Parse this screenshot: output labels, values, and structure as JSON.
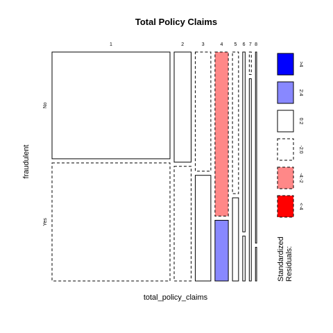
{
  "chart_data": {
    "type": "mosaic",
    "title": "Total Policy Claims",
    "xlabel": "total_policy_claims",
    "ylabel": "fraudulent",
    "categories": [
      "1",
      "2",
      "3",
      "4",
      "5",
      "6",
      "7",
      "8"
    ],
    "column_widths": [
      0.584,
      0.084,
      0.077,
      0.066,
      0.03,
      0.012,
      0.01,
      0.006
    ],
    "rows": [
      "No",
      "Yes"
    ],
    "no_share": [
      0.475,
      0.49,
      0.53,
      0.73,
      0.63,
      0.8,
      0.1,
      0.85
    ],
    "residual_class": [
      [
        "0:2",
        "0:2",
        "-2:0",
        "-4:-2",
        "-2:0",
        "0:2",
        "-2:0",
        "0:2"
      ],
      [
        "-2:0",
        "-2:0",
        "0:2",
        "2:4",
        "0:2",
        "0:2",
        "0:2",
        "0:2"
      ]
    ],
    "legend": {
      "title_lines": [
        "Standardized",
        "Residuals:"
      ],
      "entries": [
        {
          "label": ">4",
          "fill": "#0000ff",
          "dashed": false
        },
        {
          "label": "2:4",
          "fill": "#8888ff",
          "dashed": false
        },
        {
          "label": "0:2",
          "fill": "#ffffff",
          "dashed": false
        },
        {
          "label": "-2:0",
          "fill": "#ffffff",
          "dashed": true
        },
        {
          "label": "-4:-2",
          "fill": "#ff8888",
          "dashed": true
        },
        {
          "label": "<-4",
          "fill": "#ff0000",
          "dashed": true
        }
      ]
    },
    "colors": {
      "2:4": "#8888ff",
      "0:2": "#ffffff",
      "-2:0": "#ffffff",
      "-4:-2": "#ff8888"
    }
  }
}
